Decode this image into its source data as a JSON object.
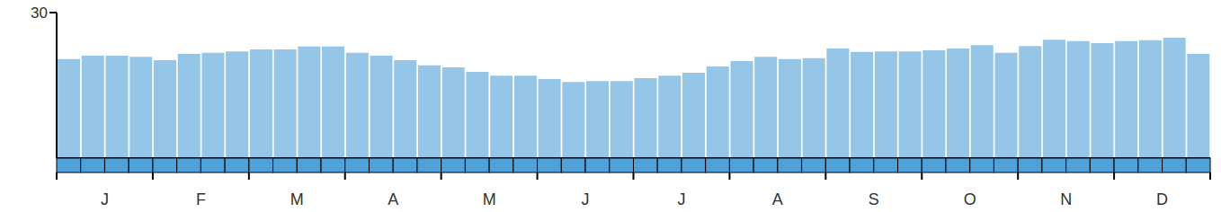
{
  "chart_data": {
    "type": "bar",
    "categories": [
      null,
      null,
      "J",
      null,
      null,
      null,
      "F",
      null,
      null,
      null,
      "M",
      null,
      null,
      null,
      "A",
      null,
      null,
      null,
      "M",
      null,
      null,
      null,
      "J",
      null,
      null,
      null,
      "J",
      null,
      null,
      null,
      "A",
      null,
      null,
      null,
      "S",
      null,
      null,
      null,
      "O",
      null,
      null,
      null,
      "N",
      null,
      null,
      null,
      "D",
      null
    ],
    "values": [
      20.4,
      21.1,
      21.1,
      20.9,
      20.2,
      21.5,
      21.7,
      22.0,
      22.4,
      22.4,
      23.0,
      23.0,
      21.7,
      21.1,
      20.2,
      19.1,
      18.7,
      17.8,
      17.0,
      17.0,
      16.3,
      15.7,
      15.9,
      15.9,
      16.5,
      17.0,
      17.6,
      18.9,
      20.0,
      20.9,
      20.4,
      20.6,
      22.6,
      21.9,
      22.0,
      22.0,
      22.2,
      22.6,
      23.3,
      21.7,
      23.1,
      24.4,
      24.1,
      23.7,
      24.1,
      24.3,
      24.8,
      21.5
    ],
    "color": "#95c6e7",
    "ylim": [
      0,
      30
    ],
    "yticks": [
      30
    ]
  }
}
